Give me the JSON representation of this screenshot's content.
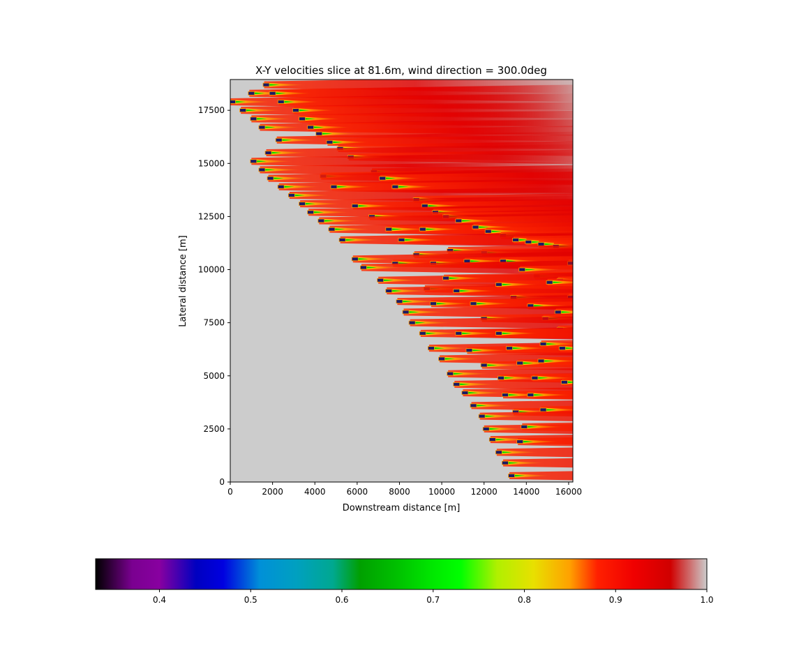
{
  "chart_data": {
    "type": "heatmap",
    "title": "X-Y velocities slice at 81.6m, wind direction = 300.0deg",
    "xlabel": "Downstream distance [m]",
    "ylabel": "Lateral distance [m]",
    "xlim": [
      0,
      16200
    ],
    "ylim": [
      0,
      18950
    ],
    "x_ticks": [
      0,
      2000,
      4000,
      6000,
      8000,
      10000,
      12000,
      14000,
      16000
    ],
    "x_tick_labels": [
      "0",
      "2000",
      "4000",
      "6000",
      "8000",
      "10000",
      "12000",
      "14000",
      "16000"
    ],
    "y_ticks": [
      0,
      2500,
      5000,
      7500,
      10000,
      12500,
      15000,
      17500
    ],
    "y_tick_labels": [
      "0",
      "2500",
      "5000",
      "7500",
      "10000",
      "12500",
      "15000",
      "17500"
    ],
    "background_color": "#cccccc",
    "colorbar": {
      "orientation": "horizontal",
      "range": [
        0.33,
        1.0
      ],
      "ticks": [
        0.4,
        0.5,
        0.6,
        0.7,
        0.8,
        0.9,
        1.0
      ],
      "tick_labels": [
        "0.4",
        "0.5",
        "0.6",
        "0.7",
        "0.8",
        "0.9",
        "1.0"
      ],
      "colormap": "nipy_spectral",
      "stops": [
        {
          "value": 0.33,
          "color": "#000000"
        },
        {
          "value": 0.37,
          "color": "#7a0090"
        },
        {
          "value": 0.4,
          "color": "#8800a0"
        },
        {
          "value": 0.44,
          "color": "#0000c0"
        },
        {
          "value": 0.47,
          "color": "#0000e0"
        },
        {
          "value": 0.51,
          "color": "#0090d8"
        },
        {
          "value": 0.55,
          "color": "#00a0c0"
        },
        {
          "value": 0.59,
          "color": "#00a890"
        },
        {
          "value": 0.62,
          "color": "#00a000"
        },
        {
          "value": 0.66,
          "color": "#00c000"
        },
        {
          "value": 0.7,
          "color": "#00e800"
        },
        {
          "value": 0.73,
          "color": "#00ff00"
        },
        {
          "value": 0.77,
          "color": "#b0f000"
        },
        {
          "value": 0.81,
          "color": "#e8e000"
        },
        {
          "value": 0.85,
          "color": "#ffa000"
        },
        {
          "value": 0.88,
          "color": "#ff2000"
        },
        {
          "value": 0.92,
          "color": "#f00000"
        },
        {
          "value": 0.96,
          "color": "#d00000"
        },
        {
          "value": 1.0,
          "color": "#cccccc"
        }
      ]
    },
    "turbines": [
      [
        1600,
        18700
      ],
      [
        900,
        18300
      ],
      [
        1900,
        18300
      ],
      [
        0,
        17900
      ],
      [
        2300,
        17900
      ],
      [
        500,
        17500
      ],
      [
        3000,
        17500
      ],
      [
        1000,
        17100
      ],
      [
        3300,
        17100
      ],
      [
        1400,
        16700
      ],
      [
        3700,
        16700
      ],
      [
        4100,
        16400
      ],
      [
        2200,
        16100
      ],
      [
        4600,
        16000
      ],
      [
        5100,
        15700
      ],
      [
        1700,
        15500
      ],
      [
        5600,
        15300
      ],
      [
        1000,
        15100
      ],
      [
        6700,
        14600
      ],
      [
        1400,
        14700
      ],
      [
        4300,
        14400
      ],
      [
        1800,
        14300
      ],
      [
        7100,
        14300
      ],
      [
        2300,
        13900
      ],
      [
        4800,
        13900
      ],
      [
        7700,
        13900
      ],
      [
        2800,
        13500
      ],
      [
        8700,
        13300
      ],
      [
        3300,
        13100
      ],
      [
        5800,
        13000
      ],
      [
        9100,
        13000
      ],
      [
        3700,
        12700
      ],
      [
        9600,
        12700
      ],
      [
        6600,
        12500
      ],
      [
        10100,
        12500
      ],
      [
        4200,
        12300
      ],
      [
        10700,
        12300
      ],
      [
        4700,
        11900
      ],
      [
        7400,
        11900
      ],
      [
        9000,
        11900
      ],
      [
        11500,
        12000
      ],
      [
        12100,
        11800
      ],
      [
        12800,
        11600
      ],
      [
        5200,
        11400
      ],
      [
        8000,
        11400
      ],
      [
        13400,
        11400
      ],
      [
        14000,
        11300
      ],
      [
        14600,
        11200
      ],
      [
        15300,
        11100
      ],
      [
        10300,
        10900
      ],
      [
        11900,
        10800
      ],
      [
        8700,
        10700
      ],
      [
        5800,
        10500
      ],
      [
        7700,
        10300
      ],
      [
        9500,
        10300
      ],
      [
        11100,
        10400
      ],
      [
        12800,
        10400
      ],
      [
        16000,
        10300
      ],
      [
        6200,
        10100
      ],
      [
        13700,
        10000
      ],
      [
        14400,
        9700
      ],
      [
        7000,
        9500
      ],
      [
        10100,
        9600
      ],
      [
        15500,
        9500
      ],
      [
        9200,
        9100
      ],
      [
        7400,
        9000
      ],
      [
        10600,
        9000
      ],
      [
        12600,
        9300
      ],
      [
        15000,
        9400
      ],
      [
        13300,
        8700
      ],
      [
        16000,
        8700
      ],
      [
        7900,
        8500
      ],
      [
        9500,
        8400
      ],
      [
        11400,
        8400
      ],
      [
        14100,
        8300
      ],
      [
        8200,
        8000
      ],
      [
        15400,
        8000
      ],
      [
        11900,
        7700
      ],
      [
        14800,
        7700
      ],
      [
        8500,
        7500
      ],
      [
        15500,
        7200
      ],
      [
        9000,
        7000
      ],
      [
        10700,
        7000
      ],
      [
        12600,
        7000
      ],
      [
        9400,
        6300
      ],
      [
        11200,
        6200
      ],
      [
        13100,
        6300
      ],
      [
        14700,
        6500
      ],
      [
        15600,
        6300
      ],
      [
        9900,
        5800
      ],
      [
        11900,
        5500
      ],
      [
        13600,
        5600
      ],
      [
        14600,
        5700
      ],
      [
        10300,
        5100
      ],
      [
        12700,
        4900
      ],
      [
        10600,
        4600
      ],
      [
        14300,
        4900
      ],
      [
        15700,
        4700
      ],
      [
        11000,
        4200
      ],
      [
        12900,
        4100
      ],
      [
        14100,
        4100
      ],
      [
        11400,
        3600
      ],
      [
        13400,
        3300
      ],
      [
        14700,
        3400
      ],
      [
        11800,
        3100
      ],
      [
        12000,
        2500
      ],
      [
        13800,
        2600
      ],
      [
        12300,
        2000
      ],
      [
        13600,
        1900
      ],
      [
        12600,
        1400
      ],
      [
        12900,
        900
      ],
      [
        13200,
        300
      ]
    ]
  }
}
